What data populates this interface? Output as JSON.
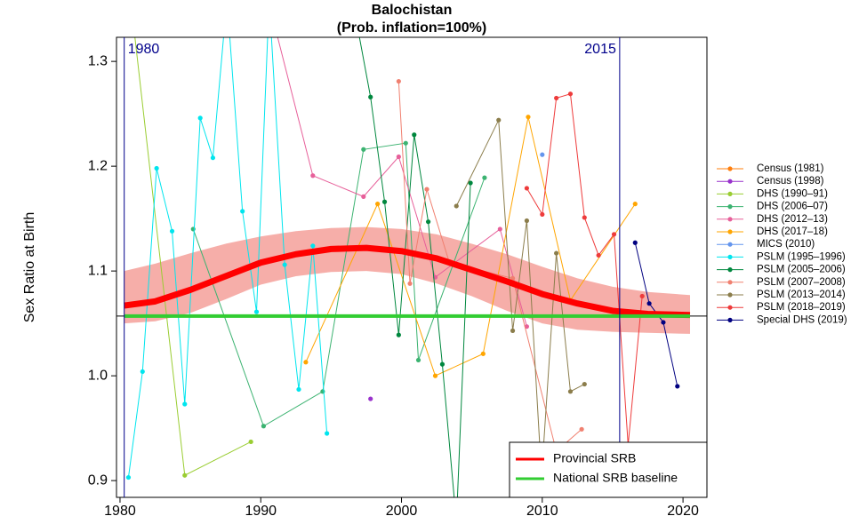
{
  "chart_data": {
    "type": "line",
    "title": "Balochistan",
    "subtitle": "(Prob. inflation=100%)",
    "y_label": "Sex Ratio at Birth",
    "xlim": [
      1979.75,
      2021.7
    ],
    "ylim": [
      0.884,
      1.323
    ],
    "xticks": [
      1980,
      1990,
      2000,
      2010,
      2020
    ],
    "yticks": [
      0.9,
      {
        "value": 1.0,
        "label": "1.0"
      },
      1.1,
      1.2,
      1.3
    ],
    "vlines": [
      {
        "value": 1980.3,
        "label": "1980"
      },
      {
        "value": 2015.5,
        "label": "2015"
      }
    ],
    "hline": 1.057,
    "series": [
      {
        "name": "Census (1981)",
        "color": "#ff7f0e",
        "x": [],
        "values": []
      },
      {
        "name": "Census (1998)",
        "color": "#9932cc",
        "x": [
          1997.8
        ],
        "values": [
          0.978
        ]
      },
      {
        "name": "DHS (1990–91)",
        "color": "#9acd32",
        "x": [
          1981.0,
          1984.6,
          1989.3
        ],
        "values": [
          1.33,
          0.905,
          0.937
        ]
      },
      {
        "name": "DHS (2006–07)",
        "color": "#3cb371",
        "x": [
          1985.2,
          1990.2,
          1994.4,
          1997.3,
          2000.3,
          2001.2,
          2005.9
        ],
        "values": [
          1.14,
          0.952,
          0.985,
          1.216,
          1.222,
          1.015,
          1.189
        ]
      },
      {
        "name": "DHS (2012–13)",
        "color": "#e7609a",
        "x": [
          1990.5,
          1993.7,
          1997.3,
          1999.8,
          2002.4,
          2007.0,
          2008.9
        ],
        "values": [
          1.36,
          1.191,
          1.171,
          1.209,
          1.094,
          1.14,
          1.047
        ]
      },
      {
        "name": "DHS (2017–18)",
        "color": "#ffa500",
        "x": [
          1993.2,
          1998.3,
          2002.4,
          2005.8,
          2009.0,
          2012.0,
          2016.6
        ],
        "values": [
          1.013,
          1.164,
          1.0,
          1.021,
          1.247,
          1.072,
          1.164
        ]
      },
      {
        "name": "MICS (2010)",
        "color": "#6495ed",
        "x": [
          2010.0
        ],
        "values": [
          1.211
        ]
      },
      {
        "name": "PSLM (1995–1996)",
        "color": "#00e5ee",
        "x": [
          1980.6,
          1981.6,
          1982.6,
          1983.7,
          1984.6,
          1985.7,
          1986.6,
          1987.6,
          1988.7,
          1989.7,
          1990.6,
          1991.7,
          1992.7,
          1993.7,
          1994.7
        ],
        "values": [
          0.903,
          1.004,
          1.198,
          1.138,
          0.973,
          1.246,
          1.208,
          1.36,
          1.157,
          1.061,
          1.36,
          1.106,
          0.987,
          1.124,
          0.945
        ]
      },
      {
        "name": "PSLM (2005–2006)",
        "color": "#00873e",
        "x": [
          1996.5,
          1997.8,
          1998.8,
          1999.8,
          2000.9,
          2001.9,
          2002.9,
          2003.9,
          2004.9
        ],
        "values": [
          1.36,
          1.266,
          1.166,
          1.039,
          1.23,
          1.147,
          1.011,
          0.86,
          1.184
        ]
      },
      {
        "name": "PSLM (2007–2008)",
        "color": "#f08070",
        "x": [
          1999.8,
          2000.6,
          2001.8,
          2003.4,
          2007.9,
          2011.0,
          2012.8
        ],
        "values": [
          1.281,
          1.088,
          1.178,
          1.108,
          1.093,
          0.928,
          0.949
        ]
      },
      {
        "name": "PSLM (2013–2014)",
        "color": "#8b7d4b",
        "x": [
          2003.9,
          2006.9,
          2007.9,
          2008.9,
          2009.95,
          2011.0,
          2012.0,
          2013.0
        ],
        "values": [
          1.162,
          1.244,
          1.043,
          1.148,
          0.904,
          1.117,
          0.985,
          0.992
        ]
      },
      {
        "name": "PSLM (2018–2019)",
        "color": "#ee3b3b",
        "x": [
          2008.9,
          2010.0,
          2011.0,
          2012.0,
          2013.0,
          2014.0,
          2015.1,
          2016.1,
          2017.1
        ],
        "values": [
          1.179,
          1.154,
          1.265,
          1.269,
          1.151,
          1.115,
          1.135,
          0.934,
          1.076
        ]
      },
      {
        "name": "Special DHS (2019)",
        "color": "#000080",
        "x": [
          2016.6,
          2017.6,
          2018.6,
          2019.6
        ],
        "values": [
          1.127,
          1.069,
          1.051,
          0.99
        ]
      }
    ],
    "estimates": [
      {
        "name": "Provincial SRB",
        "color": "#ff0000",
        "band_color": "#f4a09a",
        "x": [
          1980.3,
          1982.5,
          1985,
          1987.5,
          1990,
          1992.5,
          1995,
          1997.5,
          2000,
          2002.5,
          2005,
          2007.5,
          2010,
          2012.5,
          2015,
          2017.5,
          2020.5
        ],
        "values": [
          1.067,
          1.071,
          1.082,
          1.095,
          1.108,
          1.116,
          1.121,
          1.122,
          1.119,
          1.112,
          1.101,
          1.09,
          1.078,
          1.069,
          1.062,
          1.059,
          1.058
        ],
        "lower": [
          1.05,
          1.052,
          1.06,
          1.073,
          1.087,
          1.095,
          1.099,
          1.1,
          1.097,
          1.088,
          1.076,
          1.062,
          1.05,
          1.044,
          1.042,
          1.041,
          1.04
        ],
        "upper": [
          1.1,
          1.107,
          1.117,
          1.126,
          1.133,
          1.138,
          1.141,
          1.142,
          1.14,
          1.135,
          1.126,
          1.116,
          1.104,
          1.093,
          1.085,
          1.08,
          1.077
        ]
      },
      {
        "name": "National SRB baseline",
        "color": "#32cd32",
        "x": [
          1980.3,
          2020.5
        ],
        "values": [
          1.057,
          1.057
        ]
      }
    ]
  }
}
